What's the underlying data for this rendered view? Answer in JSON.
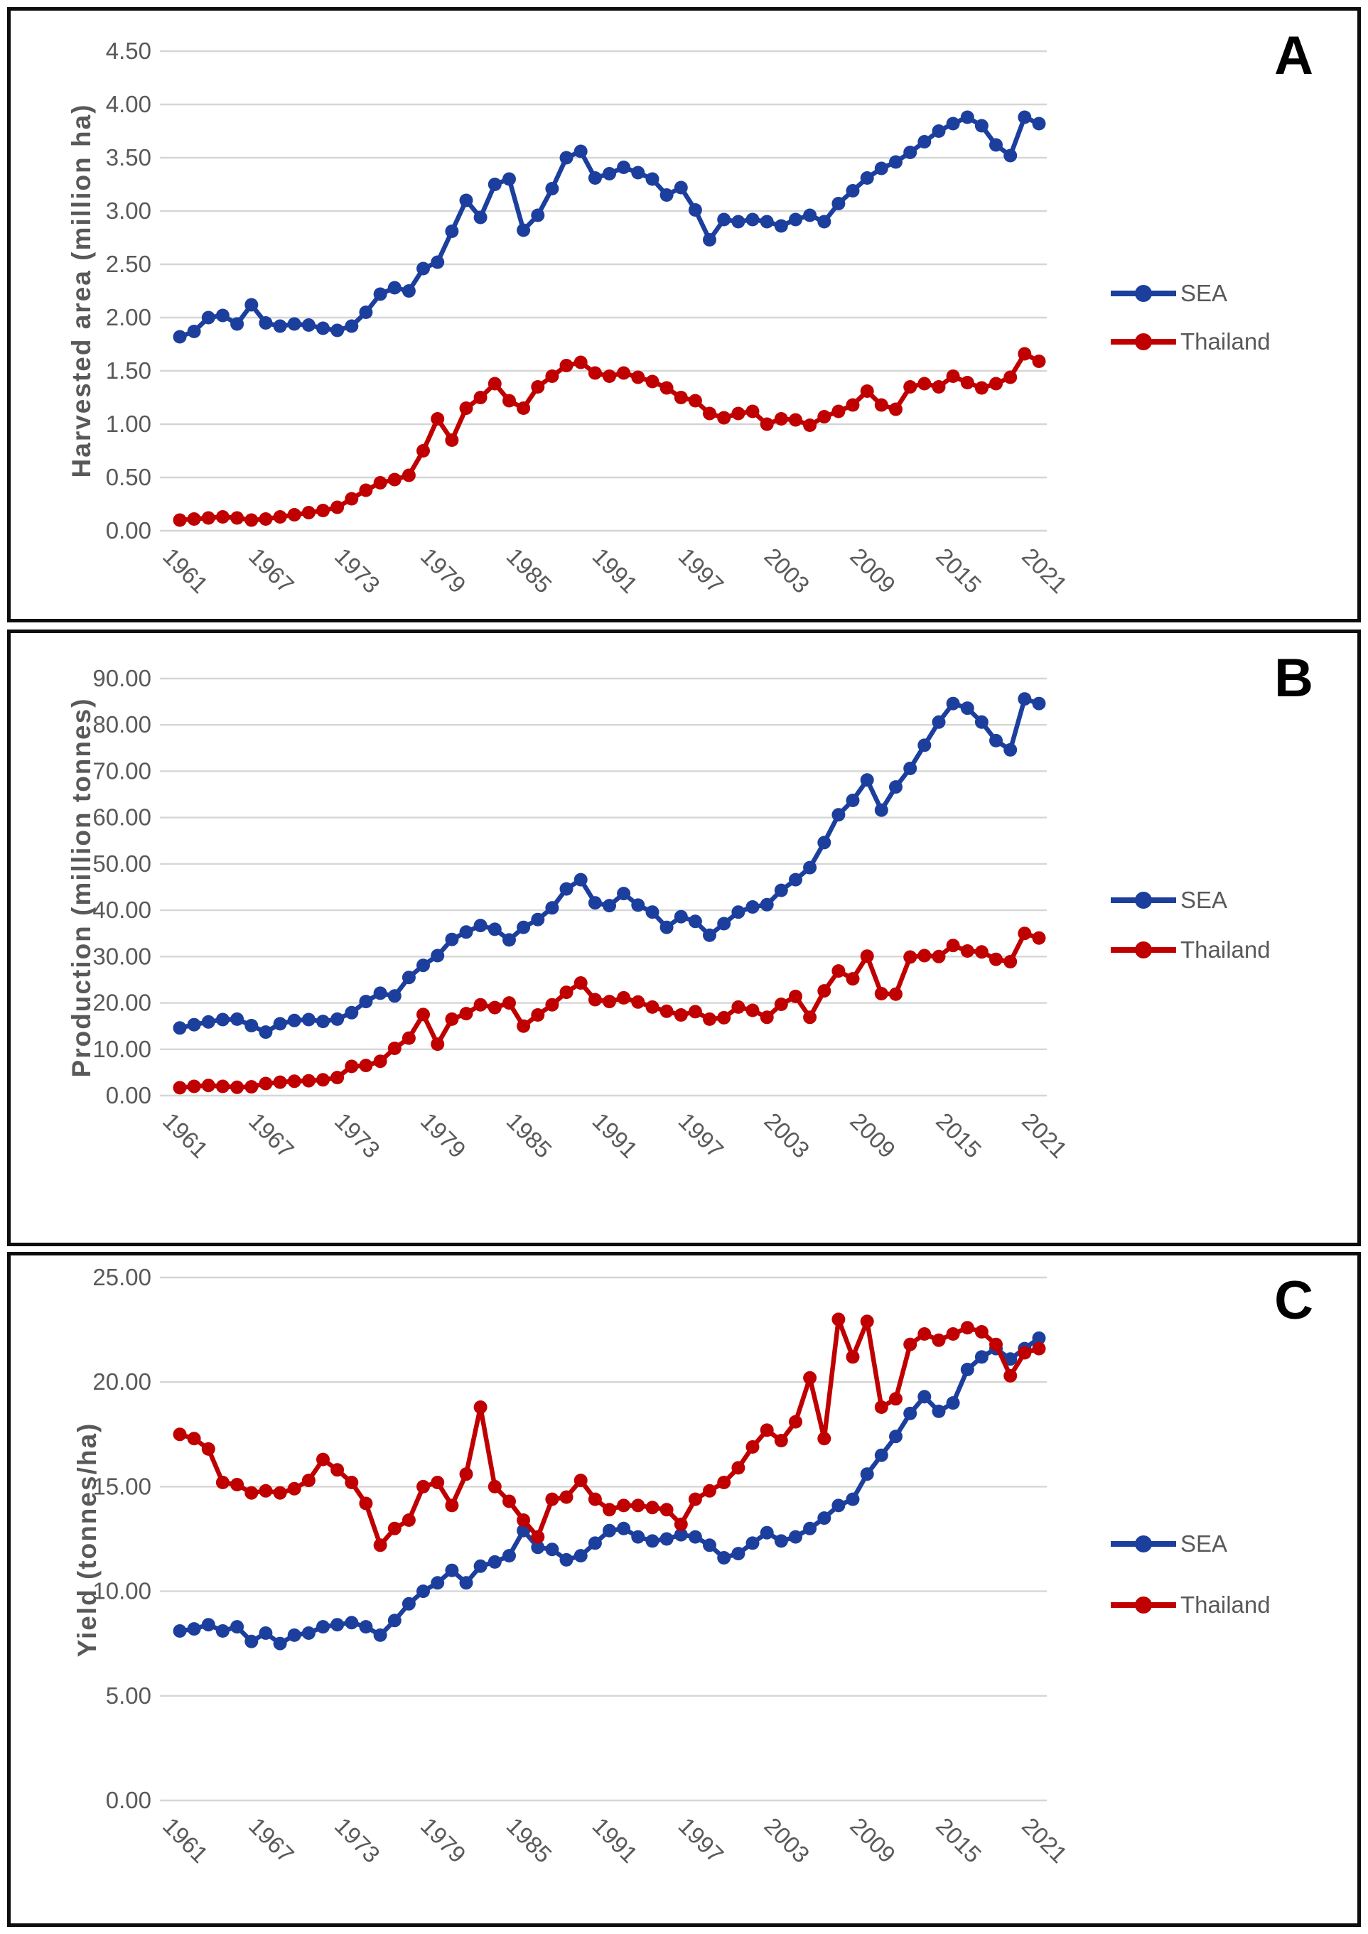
{
  "colors": {
    "sea": "#1C3F9E",
    "thailand": "#C00000",
    "grid": "#D6D6D6",
    "axis_text": "#595959",
    "panel_letter": "#000000"
  },
  "years_range": [
    1961,
    2021
  ],
  "chart_data": [
    {
      "type": "line",
      "panel_letter": "A",
      "ylabel": "Harvested area (million ha)",
      "ylim": [
        0,
        4.5
      ],
      "grid": true,
      "legend_position": "right",
      "ytick_labels": [
        "0.00",
        "0.50",
        "1.00",
        "1.50",
        "2.00",
        "2.50",
        "3.00",
        "3.50",
        "4.00",
        "4.50"
      ],
      "xtick_labels": [
        "1961",
        "1967",
        "1973",
        "1979",
        "1985",
        "1991",
        "1997",
        "2003",
        "2009",
        "2015",
        "2021"
      ],
      "series": [
        {
          "name": "SEA",
          "color_key": "sea",
          "values": [
            1.82,
            1.87,
            2.0,
            2.02,
            1.94,
            2.12,
            1.95,
            1.92,
            1.94,
            1.93,
            1.9,
            1.88,
            1.92,
            2.05,
            2.22,
            2.28,
            2.25,
            2.46,
            2.52,
            2.81,
            3.1,
            2.94,
            3.25,
            3.3,
            2.82,
            2.96,
            3.21,
            3.5,
            3.56,
            3.31,
            3.35,
            3.41,
            3.36,
            3.3,
            3.15,
            3.22,
            3.01,
            2.73,
            2.92,
            2.9,
            2.92,
            2.9,
            2.86,
            2.92,
            2.96,
            2.9,
            3.07,
            3.19,
            3.31,
            3.4,
            3.46,
            3.55,
            3.65,
            3.75,
            3.82,
            3.88,
            3.8,
            3.62,
            3.52,
            3.88,
            3.82
          ]
        },
        {
          "name": "Thailand",
          "color_key": "thailand",
          "values": [
            0.1,
            0.11,
            0.12,
            0.13,
            0.12,
            0.1,
            0.11,
            0.13,
            0.15,
            0.17,
            0.19,
            0.22,
            0.3,
            0.38,
            0.45,
            0.48,
            0.52,
            0.75,
            1.05,
            0.85,
            1.15,
            1.25,
            1.38,
            1.22,
            1.15,
            1.35,
            1.45,
            1.55,
            1.58,
            1.48,
            1.45,
            1.48,
            1.44,
            1.4,
            1.34,
            1.25,
            1.22,
            1.1,
            1.06,
            1.1,
            1.12,
            1.0,
            1.05,
            1.04,
            0.99,
            1.07,
            1.12,
            1.18,
            1.31,
            1.18,
            1.14,
            1.35,
            1.38,
            1.35,
            1.45,
            1.39,
            1.34,
            1.38,
            1.44,
            1.66,
            1.59
          ]
        }
      ]
    },
    {
      "type": "line",
      "panel_letter": "B",
      "ylabel": "Production (million tonnes)",
      "ylim": [
        0,
        90
      ],
      "grid": true,
      "legend_position": "right",
      "ytick_labels": [
        "0.00",
        "10.00",
        "20.00",
        "30.00",
        "40.00",
        "50.00",
        "60.00",
        "70.00",
        "80.00",
        "90.00"
      ],
      "xtick_labels": [
        "1961",
        "1967",
        "1973",
        "1979",
        "1985",
        "1991",
        "1997",
        "2003",
        "2009",
        "2015",
        "2021"
      ],
      "series": [
        {
          "name": "SEA",
          "color_key": "sea",
          "values": [
            14.6,
            15.3,
            15.9,
            16.4,
            16.5,
            15.1,
            13.7,
            15.5,
            16.2,
            16.4,
            16.0,
            16.5,
            17.9,
            20.3,
            22.1,
            21.5,
            25.5,
            28.1,
            30.2,
            33.7,
            35.3,
            36.7,
            35.9,
            33.6,
            36.3,
            38.0,
            40.5,
            44.6,
            46.6,
            41.6,
            41.0,
            43.6,
            41.1,
            39.6,
            36.3,
            38.6,
            37.6,
            34.6,
            37.1,
            39.6,
            40.7,
            41.2,
            44.3,
            46.6,
            49.2,
            54.6,
            60.6,
            63.7,
            68.1,
            61.6,
            66.6,
            70.6,
            75.6,
            80.6,
            84.6,
            83.6,
            80.6,
            76.6,
            74.6,
            85.6,
            84.6
          ]
        },
        {
          "name": "Thailand",
          "color_key": "thailand",
          "values": [
            1.7,
            2.0,
            2.2,
            2.0,
            1.8,
            1.9,
            2.6,
            2.9,
            3.1,
            3.2,
            3.4,
            3.9,
            6.3,
            6.5,
            7.4,
            10.2,
            12.4,
            17.5,
            11.1,
            16.5,
            17.7,
            19.6,
            19.0,
            20.0,
            15.0,
            17.4,
            19.6,
            22.3,
            24.3,
            20.7,
            20.3,
            21.1,
            20.2,
            19.1,
            18.2,
            17.4,
            18.1,
            16.5,
            16.8,
            19.1,
            18.4,
            16.9,
            19.7,
            21.4,
            16.9,
            22.6,
            26.9,
            25.2,
            30.1,
            22.0,
            21.9,
            29.9,
            30.2,
            30.0,
            32.4,
            31.2,
            31.0,
            29.4,
            28.9,
            35.0,
            34.0
          ]
        }
      ]
    },
    {
      "type": "line",
      "panel_letter": "C",
      "ylabel": "Yield (tonnes/ha)",
      "ylim": [
        0,
        25
      ],
      "grid": true,
      "legend_position": "right",
      "ytick_labels": [
        "0.00",
        "5.00",
        "10.00",
        "15.00",
        "20.00",
        "25.00"
      ],
      "xtick_labels": [
        "1961",
        "1967",
        "1973",
        "1979",
        "1985",
        "1991",
        "1997",
        "2003",
        "2009",
        "2015",
        "2021"
      ],
      "series": [
        {
          "name": "SEA",
          "color_key": "sea",
          "values": [
            8.1,
            8.2,
            8.4,
            8.1,
            8.3,
            7.6,
            8.0,
            7.5,
            7.9,
            8.0,
            8.3,
            8.4,
            8.5,
            8.3,
            7.9,
            8.6,
            9.4,
            10.0,
            10.4,
            11.0,
            10.4,
            11.2,
            11.4,
            11.7,
            12.9,
            12.1,
            12.0,
            11.5,
            11.7,
            12.3,
            12.9,
            13.0,
            12.6,
            12.4,
            12.5,
            12.7,
            12.6,
            12.2,
            11.6,
            11.8,
            12.3,
            12.8,
            12.4,
            12.6,
            13.0,
            13.5,
            14.1,
            14.4,
            15.6,
            16.5,
            17.4,
            18.5,
            19.3,
            18.6,
            19.0,
            20.6,
            21.2,
            21.6,
            21.1,
            21.6,
            22.1
          ]
        },
        {
          "name": "Thailand",
          "color_key": "thailand",
          "values": [
            17.5,
            17.3,
            16.8,
            15.2,
            15.1,
            14.7,
            14.8,
            14.7,
            14.9,
            15.3,
            16.3,
            15.8,
            15.2,
            14.2,
            12.2,
            13.0,
            13.4,
            15.0,
            15.2,
            14.1,
            15.6,
            18.8,
            15.0,
            14.3,
            13.4,
            12.6,
            14.4,
            14.5,
            15.3,
            14.4,
            13.9,
            14.1,
            14.1,
            14.0,
            13.9,
            13.2,
            14.4,
            14.8,
            15.2,
            15.9,
            16.9,
            17.7,
            17.2,
            18.1,
            20.2,
            17.3,
            23.0,
            21.2,
            22.9,
            18.8,
            19.2,
            21.8,
            22.3,
            22.0,
            22.3,
            22.6,
            22.4,
            21.8,
            20.3,
            21.4,
            21.6
          ]
        }
      ]
    }
  ]
}
